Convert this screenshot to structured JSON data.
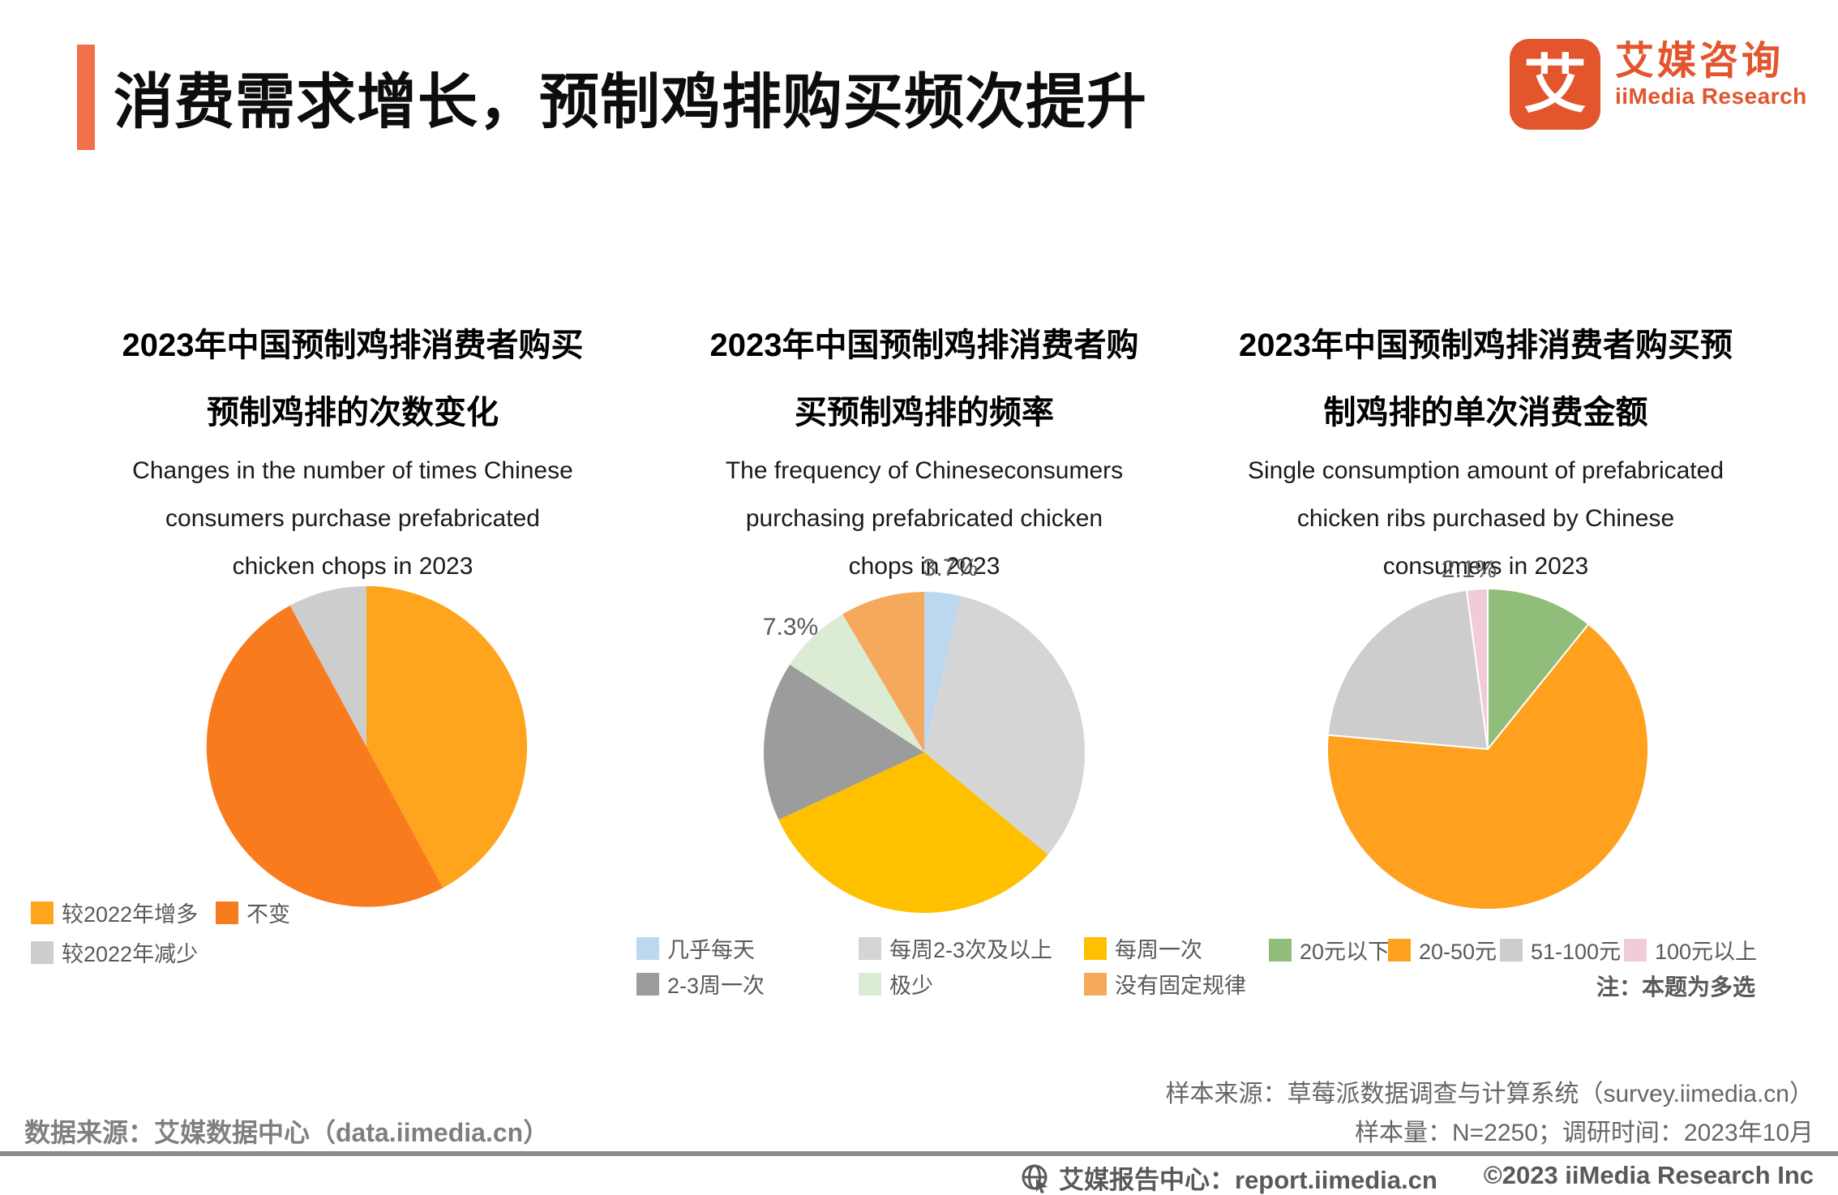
{
  "page": {
    "title": "消费需求增长，预制鸡排购买频次提升",
    "accent_color": "#F2714B"
  },
  "logo": {
    "icon_char": "艾",
    "name_zh": "艾媒咨询",
    "name_en": "iiMedia Research",
    "color": "#E2552D"
  },
  "chart_data": [
    {
      "type": "pie",
      "title_zh": "2023年中国预制鸡排消费者购买预制鸡排的次数变化",
      "title_zh_lines": [
        "2023年中国预制鸡排消费者购买",
        "预制鸡排的次数变化"
      ],
      "subtitle_en_lines": [
        "Changes in the number of times Chinese",
        "consumers purchase prefabricated",
        "chicken chops in 2023"
      ],
      "unit": "%",
      "slices": [
        {
          "label": "较2022年增多",
          "value": 42.1,
          "color": "#FFA41D"
        },
        {
          "label": "不变",
          "value": 50.0,
          "color": "#F87B1E"
        },
        {
          "label": "较2022年减少",
          "value": 7.9,
          "color": "#CDCDCD"
        }
      ]
    },
    {
      "type": "pie",
      "title_zh": "2023年中国预制鸡排消费者购买预制鸡排的频率",
      "title_zh_lines": [
        "2023年中国预制鸡排消费者购",
        "买预制鸡排的频率"
      ],
      "subtitle_en_lines": [
        "The frequency of Chineseconsumers",
        "purchasing prefabricated chicken",
        "chops in 2023"
      ],
      "unit": "%",
      "slices": [
        {
          "label": "几乎每天",
          "value": 3.7,
          "color": "#BDD7EE"
        },
        {
          "label": "每周2-3次及以上",
          "value": 32.3,
          "color": "#D5D5D5"
        },
        {
          "label": "每周一次",
          "value": 32.1,
          "color": "#FFC000"
        },
        {
          "label": "2-3周一次",
          "value": 16.1,
          "color": "#9C9C9C"
        },
        {
          "label": "极少",
          "value": 7.3,
          "color": "#DCEBD3"
        },
        {
          "label": "没有固定规律",
          "value": 8.5,
          "color": "#F4A95C"
        }
      ]
    },
    {
      "type": "pie",
      "title_zh": "2023年中国预制鸡排消费者购买预制鸡排的单次消费金额",
      "title_zh_lines": [
        "2023年中国预制鸡排消费者购买预",
        "制鸡排的单次消费金额"
      ],
      "subtitle_en_lines": [
        "Single consumption amount of prefabricated",
        "chicken ribs purchased by Chinese",
        "consumers in 2023"
      ],
      "unit": "%",
      "note": "注：本题为多选",
      "slices": [
        {
          "label": "20元以下",
          "value": 10.8,
          "color": "#90BE7A"
        },
        {
          "label": "20-50元",
          "value": 65.6,
          "color": "#FFA01E"
        },
        {
          "label": "51-100元",
          "value": 21.5,
          "color": "#CDCDCD"
        },
        {
          "label": "100元以上",
          "value": 2.1,
          "color": "#F2CBD8"
        }
      ]
    }
  ],
  "footer": {
    "data_source": "数据来源：艾媒数据中心（data.iimedia.cn）",
    "sample_source": "样本来源：草莓派数据调查与计算系统（survey.iimedia.cn）",
    "sample_info": "样本量：N=2250；调研时间：2023年10月",
    "report_center": "艾媒报告中心：report.iimedia.cn",
    "copyright": "©2023  iiMedia Research  Inc"
  }
}
